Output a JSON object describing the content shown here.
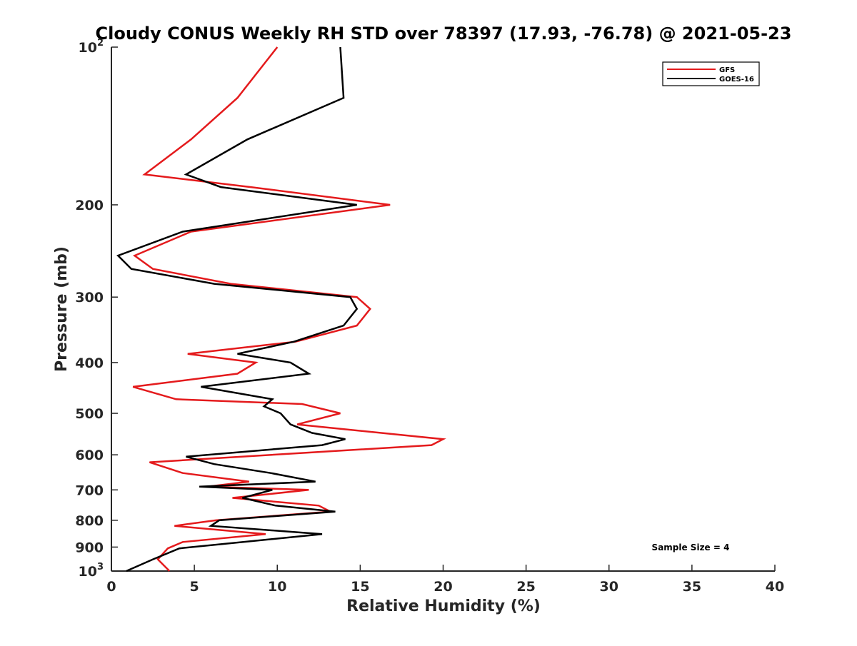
{
  "chart_data": {
    "type": "line",
    "title": "Cloudy CONUS Weekly RH STD over 78397 (17.93, -76.78) @ 2021-05-23",
    "xlabel": "Relative Humidity (%)",
    "ylabel": "Pressure (mb)",
    "xlim": [
      0,
      40
    ],
    "ylim": [
      100,
      1000
    ],
    "y_scale": "log",
    "y_reversed": true,
    "x_ticks": [
      0,
      5,
      10,
      15,
      20,
      25,
      30,
      35,
      40
    ],
    "x_tick_labels": [
      "0",
      "5",
      "10",
      "15",
      "20",
      "25",
      "30",
      "35",
      "40"
    ],
    "y_ticks": [
      {
        "value": 100,
        "base": "10",
        "exp": "2"
      },
      {
        "value": 200,
        "label": "200"
      },
      {
        "value": 300,
        "label": "300"
      },
      {
        "value": 400,
        "label": "400"
      },
      {
        "value": 500,
        "label": "500"
      },
      {
        "value": 600,
        "label": "600"
      },
      {
        "value": 700,
        "label": "700"
      },
      {
        "value": 800,
        "label": "800"
      },
      {
        "value": 900,
        "label": "900"
      },
      {
        "value": 1000,
        "base": "10",
        "exp": "3"
      }
    ],
    "grid": false,
    "legend_position": "top-right",
    "annotation": "Sample Size = 4",
    "series": [
      {
        "name": "GFS",
        "color": "#e41a1c",
        "points": [
          [
            10.0,
            100
          ],
          [
            7.6,
            125
          ],
          [
            4.8,
            150
          ],
          [
            2.0,
            175
          ],
          [
            8.4,
            185
          ],
          [
            16.8,
            200
          ],
          [
            4.8,
            225
          ],
          [
            1.4,
            250
          ],
          [
            2.5,
            265
          ],
          [
            7.2,
            283
          ],
          [
            14.8,
            300
          ],
          [
            15.6,
            316
          ],
          [
            14.8,
            340
          ],
          [
            11.1,
            365
          ],
          [
            4.6,
            385
          ],
          [
            8.7,
            400
          ],
          [
            7.6,
            420
          ],
          [
            1.3,
            445
          ],
          [
            3.9,
            470
          ],
          [
            11.5,
            480
          ],
          [
            13.8,
            500
          ],
          [
            11.2,
            525
          ],
          [
            20.0,
            560
          ],
          [
            19.3,
            575
          ],
          [
            2.3,
            620
          ],
          [
            4.3,
            650
          ],
          [
            8.3,
            675
          ],
          [
            5.8,
            690
          ],
          [
            11.9,
            700
          ],
          [
            7.3,
            725
          ],
          [
            12.5,
            750
          ],
          [
            13.2,
            770
          ],
          [
            6.3,
            800
          ],
          [
            3.8,
            820
          ],
          [
            9.3,
            850
          ],
          [
            4.3,
            880
          ],
          [
            3.4,
            905
          ],
          [
            2.8,
            950
          ],
          [
            3.5,
            1000
          ]
        ]
      },
      {
        "name": "GOES-16",
        "color": "#000000",
        "points": [
          [
            13.8,
            100
          ],
          [
            14.0,
            125
          ],
          [
            8.2,
            150
          ],
          [
            4.5,
            175
          ],
          [
            6.6,
            185
          ],
          [
            14.8,
            200
          ],
          [
            4.3,
            225
          ],
          [
            0.4,
            250
          ],
          [
            1.2,
            265
          ],
          [
            6.2,
            283
          ],
          [
            14.4,
            300
          ],
          [
            14.8,
            316
          ],
          [
            14.0,
            340
          ],
          [
            11.0,
            365
          ],
          [
            7.6,
            385
          ],
          [
            10.8,
            400
          ],
          [
            11.9,
            420
          ],
          [
            5.4,
            445
          ],
          [
            9.7,
            470
          ],
          [
            9.2,
            485
          ],
          [
            10.2,
            500
          ],
          [
            10.8,
            525
          ],
          [
            12.1,
            545
          ],
          [
            14.1,
            560
          ],
          [
            12.7,
            575
          ],
          [
            4.5,
            605
          ],
          [
            6.2,
            625
          ],
          [
            9.6,
            650
          ],
          [
            12.3,
            675
          ],
          [
            5.3,
            690
          ],
          [
            9.7,
            700
          ],
          [
            7.9,
            725
          ],
          [
            9.9,
            750
          ],
          [
            13.5,
            770
          ],
          [
            6.5,
            800
          ],
          [
            6.0,
            820
          ],
          [
            12.7,
            850
          ],
          [
            4.1,
            905
          ],
          [
            2.5,
            950
          ],
          [
            0.9,
            1000
          ]
        ]
      }
    ]
  }
}
